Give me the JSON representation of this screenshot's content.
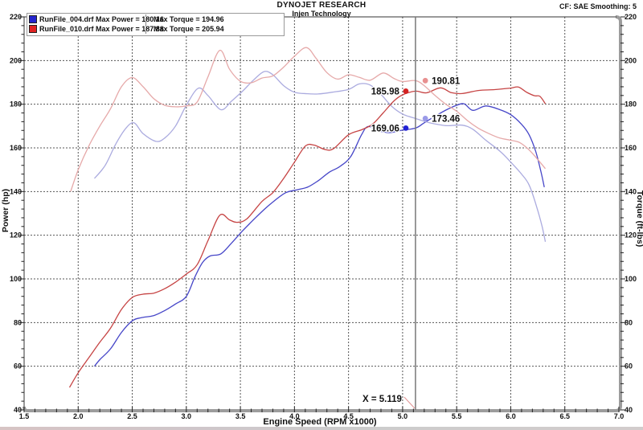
{
  "header": {
    "title": "DYNOJET RESEARCH",
    "subtitle": "Injen Technology",
    "cf": "CF: SAE  Smoothing: 5"
  },
  "legend": {
    "position": "top-left",
    "rows": [
      {
        "color": "#2424cc",
        "left": "RunFile_004.drf Max Power = 180.16",
        "right": "Max Torque = 194.96"
      },
      {
        "color": "#e02222",
        "left": "RunFile_010.drf Max Power = 187.88",
        "right": "Max Torque = 205.94"
      }
    ]
  },
  "chart_data": {
    "type": "line",
    "title": "DYNOJET RESEARCH",
    "subtitle": "Injen Technology",
    "xlabel": "Engine Speed (RPM x1000)",
    "ylabel_left": "Power (hp)",
    "ylabel_right": "Torque (ft-lbs)",
    "x_range": [
      1.5,
      7.0
    ],
    "y_range": [
      40,
      220
    ],
    "x_major": 0.5,
    "x_minor": 0.1,
    "y_major": 20,
    "y_minor": 4,
    "x_ticks": [
      "1.5",
      "2.0",
      "2.5",
      "3.0",
      "3.5",
      "4.0",
      "4.5",
      "5.0",
      "5.5",
      "6.0",
      "6.5",
      "7.0"
    ],
    "y_ticks": [
      "40",
      "60",
      "80",
      "100",
      "120",
      "140",
      "160",
      "180",
      "200",
      "220"
    ],
    "grid": "dashed",
    "series": [
      {
        "name": "RunFile_004 Power",
        "unit": "hp",
        "color": "#4646c8",
        "points": [
          [
            2.15,
            60
          ],
          [
            2.2,
            63
          ],
          [
            2.3,
            68
          ],
          [
            2.4,
            75.5
          ],
          [
            2.5,
            80.8
          ],
          [
            2.58,
            82.2
          ],
          [
            2.7,
            83.2
          ],
          [
            2.8,
            85.5
          ],
          [
            2.9,
            88.5
          ],
          [
            3.0,
            92
          ],
          [
            3.08,
            101
          ],
          [
            3.15,
            107.5
          ],
          [
            3.22,
            110.5
          ],
          [
            3.32,
            111.5
          ],
          [
            3.42,
            116.5
          ],
          [
            3.52,
            122
          ],
          [
            3.62,
            127
          ],
          [
            3.72,
            131.8
          ],
          [
            3.82,
            136
          ],
          [
            3.92,
            139.5
          ],
          [
            4.02,
            140.8
          ],
          [
            4.12,
            142
          ],
          [
            4.22,
            145
          ],
          [
            4.32,
            148.8
          ],
          [
            4.42,
            151.5
          ],
          [
            4.52,
            156
          ],
          [
            4.62,
            166
          ],
          [
            4.68,
            169.8
          ],
          [
            4.78,
            167.8
          ],
          [
            4.88,
            167
          ],
          [
            4.98,
            168
          ],
          [
            5.119,
            169.06
          ],
          [
            5.2,
            171.5
          ],
          [
            5.3,
            174.5
          ],
          [
            5.4,
            177.3
          ],
          [
            5.5,
            179.5
          ],
          [
            5.57,
            180.16
          ],
          [
            5.65,
            177.2
          ],
          [
            5.77,
            179.2
          ],
          [
            5.9,
            177.5
          ],
          [
            6.0,
            175.2
          ],
          [
            6.1,
            170.8
          ],
          [
            6.17,
            166
          ],
          [
            6.23,
            158.5
          ],
          [
            6.28,
            149
          ],
          [
            6.31,
            142
          ]
        ]
      },
      {
        "name": "RunFile_004 Torque",
        "unit": "ft-lbs",
        "color": "#ababdf",
        "points": [
          [
            2.15,
            146
          ],
          [
            2.25,
            152
          ],
          [
            2.35,
            162
          ],
          [
            2.45,
            169.5
          ],
          [
            2.52,
            171.4
          ],
          [
            2.6,
            166.5
          ],
          [
            2.72,
            163
          ],
          [
            2.8,
            164.5
          ],
          [
            2.9,
            170
          ],
          [
            3.0,
            179.5
          ],
          [
            3.11,
            187.3
          ],
          [
            3.2,
            184
          ],
          [
            3.32,
            177.5
          ],
          [
            3.42,
            181.5
          ],
          [
            3.52,
            186
          ],
          [
            3.62,
            191
          ],
          [
            3.72,
            194.96
          ],
          [
            3.8,
            193.5
          ],
          [
            3.9,
            188.5
          ],
          [
            4.0,
            185.5
          ],
          [
            4.12,
            184.8
          ],
          [
            4.22,
            184.7
          ],
          [
            4.35,
            185.5
          ],
          [
            4.5,
            186.8
          ],
          [
            4.6,
            189.3
          ],
          [
            4.7,
            188.8
          ],
          [
            4.8,
            184.5
          ],
          [
            4.9,
            179
          ],
          [
            5.0,
            175.5
          ],
          [
            5.119,
            173.46
          ],
          [
            5.25,
            171.5
          ],
          [
            5.4,
            170.2
          ],
          [
            5.55,
            170.4
          ],
          [
            5.65,
            168.5
          ],
          [
            5.77,
            163.5
          ],
          [
            5.9,
            158.5
          ],
          [
            6.0,
            153.5
          ],
          [
            6.1,
            148
          ],
          [
            6.17,
            143
          ],
          [
            6.24,
            133
          ],
          [
            6.29,
            124
          ],
          [
            6.32,
            117
          ]
        ]
      },
      {
        "name": "RunFile_010 Power",
        "unit": "hp",
        "color": "#c64444",
        "points": [
          [
            1.92,
            50.3
          ],
          [
            2.0,
            57
          ],
          [
            2.1,
            64
          ],
          [
            2.2,
            71
          ],
          [
            2.3,
            77.5
          ],
          [
            2.4,
            86
          ],
          [
            2.5,
            91.5
          ],
          [
            2.6,
            93
          ],
          [
            2.7,
            93.5
          ],
          [
            2.8,
            95.5
          ],
          [
            2.9,
            98.5
          ],
          [
            3.0,
            102.2
          ],
          [
            3.1,
            106.5
          ],
          [
            3.2,
            117.5
          ],
          [
            3.31,
            129.2
          ],
          [
            3.4,
            127
          ],
          [
            3.47,
            125.9
          ],
          [
            3.56,
            127.5
          ],
          [
            3.7,
            135.5
          ],
          [
            3.8,
            139.5
          ],
          [
            3.9,
            146
          ],
          [
            4.0,
            153.5
          ],
          [
            4.1,
            160.8
          ],
          [
            4.18,
            161.3
          ],
          [
            4.28,
            159.3
          ],
          [
            4.36,
            159.6
          ],
          [
            4.5,
            166
          ],
          [
            4.62,
            168.3
          ],
          [
            4.72,
            170.8
          ],
          [
            4.82,
            176
          ],
          [
            4.92,
            181.5
          ],
          [
            5.0,
            184.3
          ],
          [
            5.119,
            185.98
          ],
          [
            5.22,
            185.2
          ],
          [
            5.35,
            187.5
          ],
          [
            5.45,
            185.3
          ],
          [
            5.55,
            184.9
          ],
          [
            5.7,
            186.3
          ],
          [
            5.85,
            186.7
          ],
          [
            6.0,
            187.4
          ],
          [
            6.07,
            187.88
          ],
          [
            6.15,
            185.4
          ],
          [
            6.22,
            183.9
          ],
          [
            6.27,
            183.6
          ],
          [
            6.32,
            180.2
          ]
        ]
      },
      {
        "name": "RunFile_010 Torque",
        "unit": "ft-lbs",
        "color": "#e6a9a9",
        "points": [
          [
            1.93,
            140
          ],
          [
            2.0,
            150
          ],
          [
            2.1,
            161
          ],
          [
            2.2,
            170
          ],
          [
            2.3,
            178
          ],
          [
            2.4,
            188
          ],
          [
            2.5,
            192.2
          ],
          [
            2.6,
            188
          ],
          [
            2.7,
            182.5
          ],
          [
            2.8,
            179.5
          ],
          [
            2.9,
            178.8
          ],
          [
            3.0,
            179.2
          ],
          [
            3.1,
            181
          ],
          [
            3.2,
            192.5
          ],
          [
            3.31,
            204.7
          ],
          [
            3.4,
            196
          ],
          [
            3.5,
            190.5
          ],
          [
            3.6,
            189.8
          ],
          [
            3.7,
            192
          ],
          [
            3.8,
            193
          ],
          [
            3.9,
            197
          ],
          [
            4.0,
            202
          ],
          [
            4.11,
            205.94
          ],
          [
            4.2,
            201
          ],
          [
            4.3,
            194.5
          ],
          [
            4.4,
            191.5
          ],
          [
            4.5,
            193.5
          ],
          [
            4.6,
            192.3
          ],
          [
            4.7,
            191
          ],
          [
            4.82,
            194.3
          ],
          [
            4.92,
            191.8
          ],
          [
            5.0,
            190.4
          ],
          [
            5.119,
            190.81
          ],
          [
            5.2,
            188.5
          ],
          [
            5.3,
            184
          ],
          [
            5.4,
            180
          ],
          [
            5.5,
            176.8
          ],
          [
            5.6,
            172.5
          ],
          [
            5.7,
            169
          ],
          [
            5.8,
            166.5
          ],
          [
            5.9,
            164.5
          ],
          [
            6.0,
            163.5
          ],
          [
            6.08,
            162.5
          ],
          [
            6.15,
            160
          ],
          [
            6.2,
            157.5
          ],
          [
            6.27,
            153.5
          ],
          [
            6.32,
            150.5
          ]
        ]
      }
    ],
    "cursor": {
      "x": 5.119,
      "label": "X = 5.119"
    },
    "markers": [
      {
        "label": "190.81",
        "x": 5.21,
        "y": 190.81,
        "color": "#e89090",
        "side": "right"
      },
      {
        "label": "185.98",
        "x": 5.03,
        "y": 185.98,
        "color": "#d42222",
        "side": "left"
      },
      {
        "label": "173.46",
        "x": 5.21,
        "y": 173.46,
        "color": "#9a9ae8",
        "side": "right"
      },
      {
        "label": "169.06",
        "x": 5.03,
        "y": 169.06,
        "color": "#2222d4",
        "side": "left"
      }
    ]
  },
  "style": {
    "grid_color": "#555555",
    "frame_color": "#333333",
    "axis_band_color": "#9c9c9c",
    "cursor_color": "#777777",
    "callout_color": "#e09090",
    "text_color": "#111111"
  }
}
